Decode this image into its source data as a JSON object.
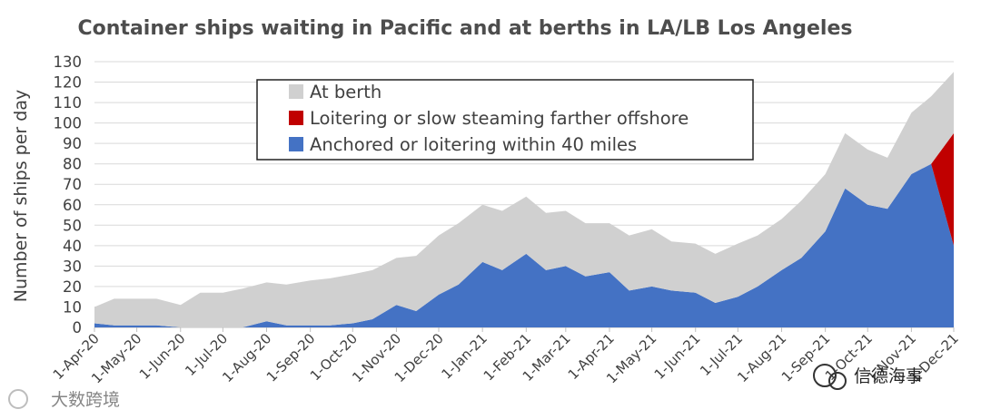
{
  "chart_data": {
    "type": "area",
    "stacked": true,
    "title": "Container ships waiting in Pacific and at berths in LA/LB Los Angeles",
    "ylabel": "Number of ships per day",
    "xlabel": "",
    "ylim": [
      0,
      130
    ],
    "yticks": [
      0,
      10,
      20,
      30,
      40,
      50,
      60,
      70,
      80,
      90,
      100,
      110,
      120,
      130
    ],
    "grid": true,
    "legend_position": "top-center",
    "x": [
      "2020-04-01",
      "2020-04-15",
      "2020-05-01",
      "2020-05-15",
      "2020-06-01",
      "2020-06-15",
      "2020-07-01",
      "2020-07-15",
      "2020-08-01",
      "2020-08-15",
      "2020-09-01",
      "2020-09-15",
      "2020-10-01",
      "2020-10-15",
      "2020-11-01",
      "2020-11-15",
      "2020-12-01",
      "2020-12-15",
      "2021-01-01",
      "2021-01-15",
      "2021-02-01",
      "2021-02-15",
      "2021-03-01",
      "2021-03-15",
      "2021-04-01",
      "2021-04-15",
      "2021-05-01",
      "2021-05-15",
      "2021-06-01",
      "2021-06-15",
      "2021-07-01",
      "2021-07-15",
      "2021-08-01",
      "2021-08-15",
      "2021-09-01",
      "2021-09-15",
      "2021-10-01",
      "2021-10-15",
      "2021-11-01",
      "2021-11-15",
      "2021-12-01"
    ],
    "x_tick_labels": [
      "1-Apr-20",
      "1-May-20",
      "1-Jun-20",
      "1-Jul-20",
      "1-Aug-20",
      "1-Sep-20",
      "1-Oct-20",
      "1-Nov-20",
      "1-Dec-20",
      "1-Jan-21",
      "1-Feb-21",
      "1-Mar-21",
      "1-Apr-21",
      "1-May-21",
      "1-Jun-21",
      "1-Jul-21",
      "1-Aug-21",
      "1-Sep-21",
      "1-Oct-21",
      "1-Nov-21",
      "1-Dec-21"
    ],
    "series": [
      {
        "name": "Anchored or loitering within 40 miles",
        "color": "#4472c4",
        "values": [
          2,
          1,
          1,
          1,
          0,
          0,
          0,
          0,
          3,
          1,
          1,
          1,
          2,
          4,
          11,
          8,
          16,
          21,
          32,
          28,
          36,
          28,
          30,
          25,
          27,
          18,
          20,
          18,
          17,
          12,
          15,
          20,
          28,
          34,
          47,
          68,
          60,
          58,
          75,
          80,
          40
        ]
      },
      {
        "name": "Loitering or slow steaming farther offshore",
        "color": "#c00000",
        "values": [
          0,
          0,
          0,
          0,
          0,
          0,
          0,
          0,
          0,
          0,
          0,
          0,
          0,
          0,
          0,
          0,
          0,
          0,
          0,
          0,
          0,
          0,
          0,
          0,
          0,
          0,
          0,
          0,
          0,
          0,
          0,
          0,
          0,
          0,
          0,
          0,
          0,
          0,
          0,
          0,
          55
        ]
      },
      {
        "name": "At berth",
        "color": "#d0d0d0",
        "values": [
          8,
          13,
          13,
          13,
          11,
          17,
          17,
          19,
          19,
          20,
          22,
          23,
          24,
          24,
          23,
          27,
          29,
          30,
          28,
          29,
          28,
          28,
          27,
          26,
          24,
          27,
          28,
          24,
          24,
          24,
          26,
          25,
          25,
          28,
          28,
          27,
          27,
          25,
          30,
          33,
          30
        ]
      }
    ]
  },
  "watermarks": {
    "right": "信德海事",
    "left": "大数跨境"
  }
}
